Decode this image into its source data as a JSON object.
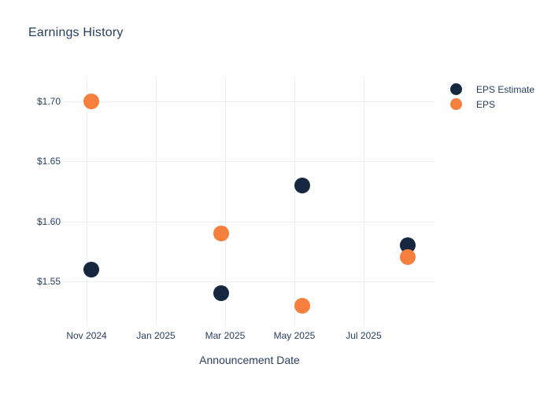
{
  "title": "Earnings History",
  "legend": {
    "items": [
      {
        "label": "EPS Estimate",
        "color": "#15283F"
      },
      {
        "label": "EPS",
        "color": "#F5803E"
      }
    ]
  },
  "colors": {
    "background": "#ffffff",
    "text": "#2a3f5f",
    "grid": "#e9eef6",
    "eps_estimate": "#15283F",
    "eps": "#F5803E"
  },
  "chart_data": {
    "type": "scatter",
    "title": "Earnings History",
    "xlabel": "Announcement Date",
    "ylabel": "",
    "grid": true,
    "legend_position": "right",
    "marker_diameter_px": 20,
    "x_axis": {
      "tick_labels": [
        "Nov 2024",
        "Jan 2025",
        "Mar 2025",
        "May 2025",
        "Jul 2025"
      ],
      "tick_months_from_nov2024": [
        0,
        2,
        4,
        6,
        8
      ],
      "range_months": [
        -0.66,
        10.07
      ]
    },
    "y_axis": {
      "tick_labels": [
        "$1.55",
        "$1.60",
        "$1.65",
        "$1.70"
      ],
      "tick_values": [
        1.55,
        1.6,
        1.65,
        1.7
      ],
      "range": [
        1.5133,
        1.7197
      ]
    },
    "series": [
      {
        "name": "EPS Estimate",
        "color": "#15283F",
        "points": [
          {
            "date_est": "2024-11-05",
            "x_months": 0.14,
            "value": 1.56
          },
          {
            "date_est": "2025-02-27",
            "x_months": 3.89,
            "value": 1.54
          },
          {
            "date_est": "2025-05-07",
            "x_months": 6.22,
            "value": 1.63
          },
          {
            "date_est": "2025-08-09",
            "x_months": 9.27,
            "value": 1.58
          }
        ]
      },
      {
        "name": "EPS",
        "color": "#F5803E",
        "points": [
          {
            "date_est": "2024-11-05",
            "x_months": 0.14,
            "value": 1.7
          },
          {
            "date_est": "2025-02-27",
            "x_months": 3.89,
            "value": 1.59
          },
          {
            "date_est": "2025-05-07",
            "x_months": 6.22,
            "value": 1.53
          },
          {
            "date_est": "2025-08-09",
            "x_months": 9.27,
            "value": 1.57
          }
        ]
      }
    ]
  }
}
